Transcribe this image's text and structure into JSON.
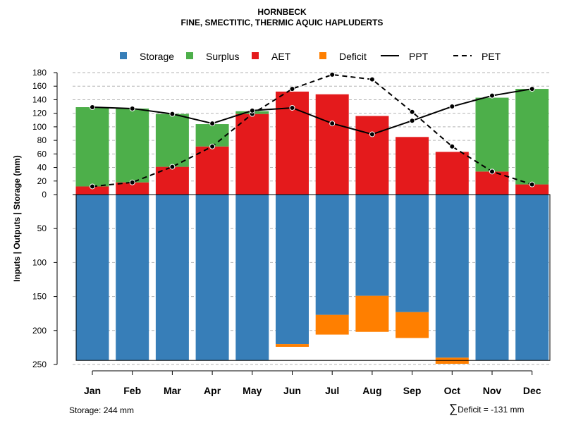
{
  "chart_data": {
    "type": "bar",
    "title": "HORNBECK",
    "subtitle": "FINE, SMECTITIC, THERMIC AQUIC HAPLUDERTS",
    "ylabel": "Inputs | Outputs | Storage    (mm)",
    "categories": [
      "Jan",
      "Feb",
      "Mar",
      "Apr",
      "May",
      "Jun",
      "Jul",
      "Aug",
      "Sep",
      "Oct",
      "Nov",
      "Dec"
    ],
    "upper_ylim": [
      0,
      180
    ],
    "upper_ticks": [
      0,
      20,
      40,
      60,
      80,
      100,
      120,
      140,
      160,
      180
    ],
    "lower_ylim": [
      0,
      250
    ],
    "lower_ticks": [
      50,
      100,
      150,
      200,
      250
    ],
    "storage_capacity": 244,
    "series": [
      {
        "name": "AET",
        "color": "#E41A1C",
        "values": [
          12,
          18,
          41,
          71,
          119,
          152,
          148,
          116,
          85,
          63,
          34,
          15
        ]
      },
      {
        "name": "Surplus",
        "color": "#4DAF4A",
        "values": [
          117,
          109,
          78,
          33,
          4,
          0,
          0,
          0,
          0,
          0,
          109,
          141
        ]
      },
      {
        "name": "Storage",
        "color": "#377EB8",
        "values": [
          244,
          244,
          244,
          244,
          244,
          220,
          177,
          149,
          173,
          240,
          244,
          244
        ]
      },
      {
        "name": "Deficit",
        "color": "#FF7F00",
        "values": [
          0,
          0,
          0,
          0,
          0,
          4,
          29,
          53,
          38,
          9,
          0,
          0
        ]
      },
      {
        "name": "PPT",
        "color": "#000000",
        "style": "solid",
        "values": [
          129,
          127,
          119,
          105,
          124,
          128,
          105,
          89,
          109,
          130,
          146,
          156
        ]
      },
      {
        "name": "PET",
        "color": "#000000",
        "style": "dashed",
        "values": [
          12,
          18,
          41,
          71,
          119,
          156,
          177,
          170,
          122,
          71,
          34,
          15
        ]
      }
    ],
    "legend": {
      "position": "top",
      "items": [
        {
          "label": "Storage",
          "type": "box",
          "color": "#377EB8"
        },
        {
          "label": "Surplus",
          "type": "box",
          "color": "#4DAF4A"
        },
        {
          "label": "AET",
          "type": "box",
          "color": "#E41A1C"
        },
        {
          "label": "Deficit",
          "type": "box",
          "color": "#FF7F00"
        },
        {
          "label": "PPT",
          "type": "line",
          "dash": false
        },
        {
          "label": "PET",
          "type": "line",
          "dash": true
        }
      ]
    },
    "grid": true,
    "footer_left": "Storage: 244 mm",
    "footer_right_symbol": "∑",
    "footer_right": "Deficit = -131 mm"
  }
}
